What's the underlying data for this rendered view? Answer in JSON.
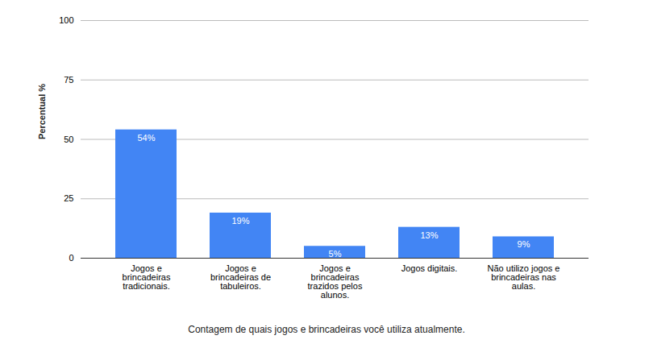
{
  "chart_data": {
    "type": "bar",
    "x_label": "Contagem de quais jogos e brincadeiras você utiliza atualmente.",
    "y_label": "Percentual %",
    "categories": [
      "Jogos e brincadeiras tradicionais.",
      "Jogos e brincadeiras de tabuleiros.",
      "Jogos e brincadeiras trazidos pelos alunos.",
      "Jogos digitais.",
      "Não utilizo jogos e brincadeiras nas aulas."
    ],
    "values": [
      54,
      19,
      5,
      13,
      9
    ],
    "value_labels": [
      "54%",
      "19%",
      "5%",
      "13%",
      "9%"
    ],
    "color": "#4285f4",
    "ylim": [
      0,
      100
    ],
    "yticks": [
      0,
      25,
      50,
      75,
      100
    ],
    "grid": true,
    "data_labels": true
  }
}
